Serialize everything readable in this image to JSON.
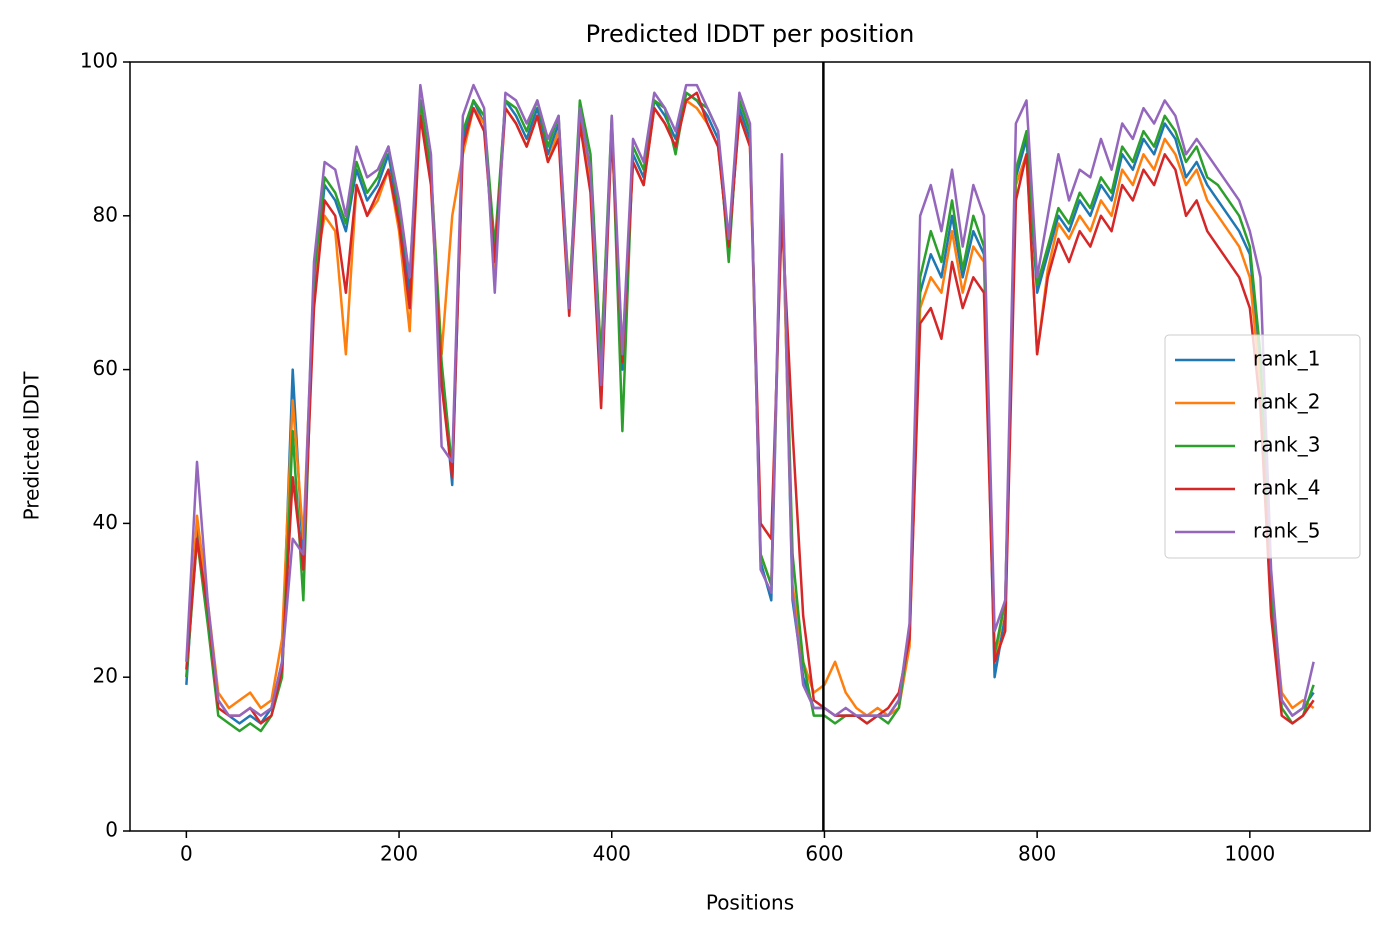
{
  "chart_data": {
    "type": "line",
    "title": "Predicted lDDT per position",
    "xlabel": "Positions",
    "ylabel": "Predicted lDDT",
    "x": [
      0,
      10,
      20,
      30,
      40,
      50,
      60,
      70,
      80,
      90,
      100,
      110,
      120,
      130,
      140,
      150,
      160,
      170,
      180,
      190,
      200,
      210,
      220,
      230,
      240,
      250,
      260,
      270,
      280,
      290,
      300,
      310,
      320,
      330,
      340,
      350,
      360,
      370,
      380,
      390,
      400,
      410,
      420,
      430,
      440,
      450,
      460,
      470,
      480,
      490,
      500,
      510,
      520,
      530,
      540,
      550,
      560,
      570,
      580,
      590,
      600,
      610,
      620,
      630,
      640,
      650,
      660,
      670,
      680,
      690,
      700,
      710,
      720,
      730,
      740,
      750,
      760,
      770,
      780,
      790,
      800,
      810,
      820,
      830,
      840,
      850,
      860,
      870,
      880,
      890,
      900,
      910,
      920,
      930,
      940,
      950,
      960,
      970,
      980,
      990,
      1000,
      1010,
      1020,
      1030,
      1040,
      1050,
      1060
    ],
    "series": [
      {
        "name": "rank_1",
        "color": "#1f77b4",
        "values": [
          19,
          40,
          28,
          17,
          15,
          14,
          15,
          14,
          16,
          22,
          60,
          35,
          70,
          84,
          82,
          78,
          86,
          82,
          84,
          88,
          80,
          70,
          95,
          85,
          60,
          45,
          90,
          95,
          92,
          75,
          95,
          93,
          90,
          94,
          88,
          92,
          68,
          93,
          85,
          60,
          92,
          60,
          88,
          85,
          95,
          93,
          90,
          96,
          95,
          93,
          90,
          75,
          94,
          90,
          35,
          30,
          85,
          30,
          20,
          16,
          16,
          15,
          15,
          15,
          15,
          15,
          15,
          17,
          25,
          70,
          75,
          72,
          80,
          72,
          78,
          75,
          20,
          28,
          85,
          90,
          70,
          75,
          80,
          78,
          82,
          80,
          84,
          82,
          88,
          86,
          90,
          88,
          92,
          90,
          85,
          87,
          84,
          82,
          80,
          78,
          75,
          60,
          30,
          17,
          15,
          16,
          18
        ]
      },
      {
        "name": "rank_2",
        "color": "#ff7f0e",
        "values": [
          20,
          41,
          30,
          18,
          16,
          17,
          18,
          16,
          17,
          25,
          56,
          38,
          72,
          80,
          78,
          62,
          84,
          80,
          82,
          86,
          78,
          65,
          94,
          86,
          62,
          80,
          88,
          94,
          92,
          73,
          94,
          92,
          89,
          93,
          87,
          91,
          70,
          92,
          84,
          62,
          91,
          62,
          87,
          84,
          94,
          92,
          89,
          95,
          94,
          92,
          89,
          76,
          93,
          89,
          36,
          32,
          84,
          32,
          22,
          18,
          19,
          22,
          18,
          16,
          15,
          16,
          15,
          16,
          24,
          68,
          72,
          70,
          78,
          70,
          76,
          74,
          22,
          30,
          84,
          88,
          62,
          73,
          79,
          77,
          80,
          78,
          82,
          80,
          86,
          84,
          88,
          86,
          90,
          88,
          84,
          86,
          82,
          80,
          78,
          76,
          72,
          58,
          32,
          18,
          16,
          17,
          16
        ]
      },
      {
        "name": "rank_3",
        "color": "#2ca02c",
        "values": [
          20,
          38,
          27,
          15,
          14,
          13,
          14,
          13,
          15,
          20,
          52,
          30,
          72,
          85,
          83,
          79,
          87,
          83,
          85,
          89,
          81,
          72,
          95,
          86,
          61,
          47,
          91,
          95,
          93,
          76,
          95,
          94,
          91,
          95,
          89,
          93,
          69,
          95,
          88,
          61,
          93,
          52,
          89,
          86,
          95,
          94,
          88,
          96,
          95,
          94,
          91,
          74,
          95,
          91,
          36,
          32,
          86,
          36,
          22,
          15,
          15,
          14,
          15,
          15,
          14,
          15,
          14,
          16,
          26,
          72,
          78,
          74,
          82,
          73,
          80,
          76,
          23,
          30,
          86,
          91,
          71,
          76,
          81,
          79,
          83,
          81,
          85,
          83,
          89,
          87,
          91,
          89,
          93,
          91,
          87,
          89,
          85,
          84,
          82,
          80,
          76,
          62,
          32,
          16,
          14,
          15,
          19
        ]
      },
      {
        "name": "rank_4",
        "color": "#d62728",
        "values": [
          21,
          38,
          29,
          16,
          15,
          15,
          16,
          14,
          15,
          21,
          46,
          34,
          68,
          82,
          80,
          70,
          84,
          80,
          83,
          86,
          79,
          68,
          93,
          84,
          58,
          46,
          89,
          94,
          91,
          74,
          94,
          92,
          89,
          93,
          87,
          90,
          67,
          92,
          83,
          55,
          91,
          61,
          87,
          84,
          94,
          92,
          89,
          95,
          96,
          92,
          89,
          76,
          93,
          89,
          40,
          38,
          80,
          52,
          28,
          17,
          16,
          15,
          15,
          15,
          14,
          15,
          16,
          18,
          25,
          66,
          68,
          64,
          74,
          68,
          72,
          70,
          22,
          26,
          82,
          88,
          62,
          72,
          77,
          74,
          78,
          76,
          80,
          78,
          84,
          82,
          86,
          84,
          88,
          86,
          80,
          82,
          78,
          76,
          74,
          72,
          68,
          55,
          28,
          15,
          14,
          15,
          17
        ]
      },
      {
        "name": "rank_5",
        "color": "#9467bd",
        "values": [
          22,
          48,
          30,
          17,
          15,
          15,
          16,
          15,
          16,
          22,
          38,
          36,
          74,
          87,
          86,
          80,
          89,
          85,
          86,
          89,
          82,
          72,
          97,
          88,
          50,
          48,
          93,
          97,
          94,
          70,
          96,
          95,
          92,
          95,
          90,
          93,
          68,
          94,
          86,
          58,
          93,
          62,
          90,
          87,
          96,
          94,
          91,
          97,
          97,
          94,
          91,
          77,
          96,
          92,
          34,
          31,
          88,
          31,
          19,
          16,
          16,
          15,
          16,
          15,
          15,
          15,
          15,
          17,
          27,
          80,
          84,
          78,
          86,
          76,
          84,
          80,
          26,
          30,
          92,
          95,
          72,
          80,
          88,
          82,
          86,
          85,
          90,
          86,
          92,
          90,
          94,
          92,
          95,
          93,
          88,
          90,
          88,
          86,
          84,
          82,
          78,
          72,
          34,
          17,
          15,
          16,
          22
        ]
      }
    ],
    "vline": {
      "x": 599,
      "color": "#000000"
    },
    "xlim": [
      -53,
      1113
    ],
    "xticks": [
      0,
      200,
      400,
      600,
      800,
      1000
    ],
    "ylim": [
      0,
      100
    ],
    "yticks": [
      0,
      20,
      40,
      60,
      80,
      100
    ],
    "grid": false,
    "legend": "center right"
  }
}
